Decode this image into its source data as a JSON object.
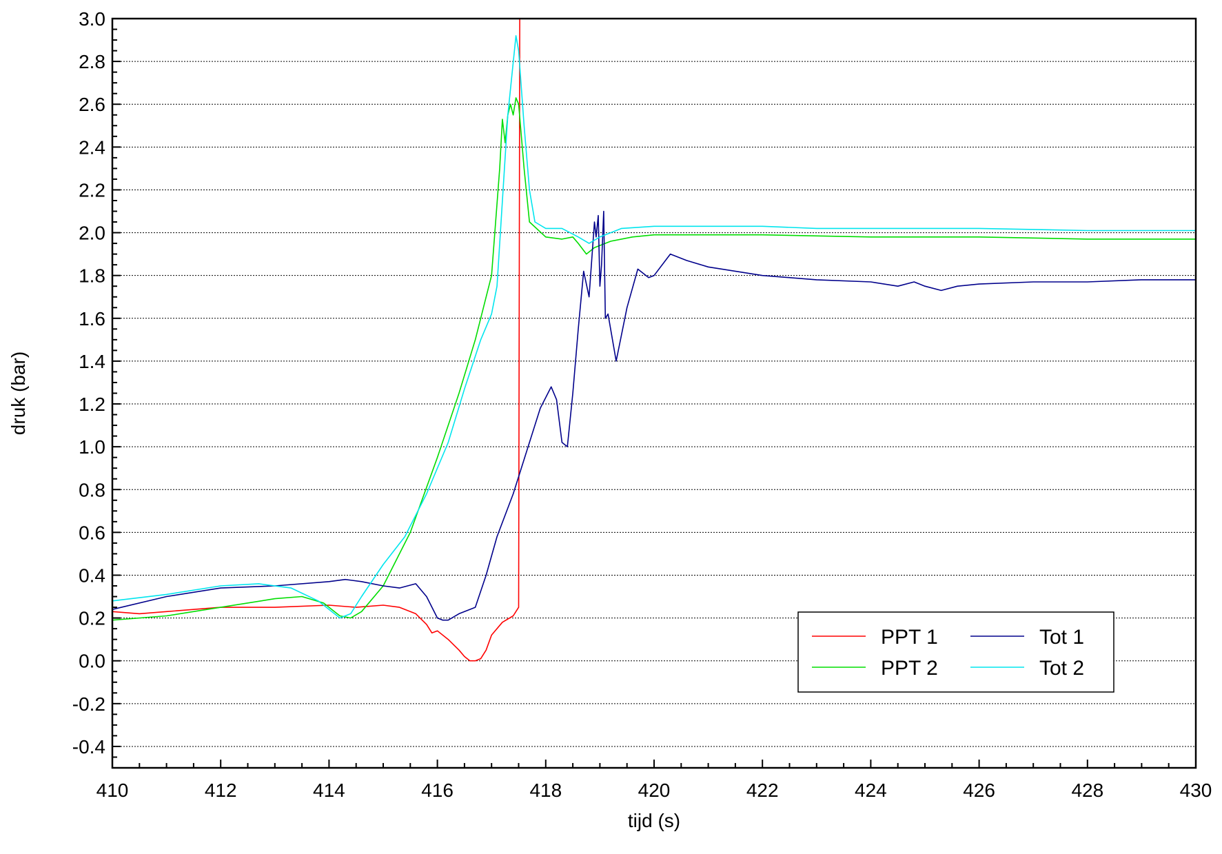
{
  "chart_data": {
    "type": "line",
    "title": "",
    "xlabel": "tijd (s)",
    "ylabel": "druk (bar)",
    "xlim": [
      410,
      430
    ],
    "ylim": [
      -0.5,
      3.0
    ],
    "x_ticks": [
      410,
      412,
      414,
      416,
      418,
      420,
      422,
      424,
      426,
      428,
      430
    ],
    "y_ticks": [
      -0.4,
      -0.2,
      0.0,
      0.2,
      0.4,
      0.6,
      0.8,
      1.0,
      1.2,
      1.4,
      1.6,
      1.8,
      2.0,
      2.2,
      2.4,
      2.6,
      2.8,
      3.0
    ],
    "x_tick_labels": [
      "410",
      "412",
      "414",
      "416",
      "418",
      "420",
      "422",
      "424",
      "426",
      "428",
      "430"
    ],
    "y_tick_labels": [
      "-0.4",
      "-0.2",
      "0.0",
      "0.2",
      "0.4",
      "0.6",
      "0.8",
      "1.0",
      "1.2",
      "1.4",
      "1.6",
      "1.8",
      "2.0",
      "2.2",
      "2.4",
      "2.6",
      "2.8",
      "3.0"
    ],
    "grid": "horizontal dotted",
    "legend_position": "bottom-right",
    "series": [
      {
        "name": "PPT 1",
        "color": "#ff0000",
        "x": [
          410,
          410.5,
          411,
          412,
          413,
          414,
          414.5,
          415,
          415.3,
          415.6,
          415.8,
          415.9,
          416.0,
          416.2,
          416.4,
          416.5,
          416.6,
          416.7,
          416.8,
          416.9,
          417.0,
          417.2,
          417.4,
          417.5,
          417.52,
          417.55
        ],
        "y": [
          0.23,
          0.22,
          0.23,
          0.25,
          0.25,
          0.26,
          0.25,
          0.26,
          0.25,
          0.22,
          0.17,
          0.13,
          0.14,
          0.1,
          0.05,
          0.02,
          0.0,
          0.0,
          0.01,
          0.05,
          0.12,
          0.18,
          0.21,
          0.25,
          3.0,
          3.0
        ]
      },
      {
        "name": "PPT 2",
        "color": "#00dd00",
        "x": [
          410,
          411,
          412,
          413,
          413.5,
          413.9,
          414.2,
          414.4,
          414.6,
          415.0,
          415.5,
          416.0,
          416.4,
          416.7,
          417.0,
          417.15,
          417.2,
          417.25,
          417.3,
          417.35,
          417.4,
          417.45,
          417.5,
          417.6,
          417.7,
          418.0,
          418.3,
          418.5,
          418.6,
          418.75,
          418.9,
          419.2,
          419.6,
          420,
          421,
          422,
          424,
          426,
          428,
          430
        ],
        "y": [
          0.19,
          0.21,
          0.25,
          0.29,
          0.3,
          0.27,
          0.21,
          0.2,
          0.23,
          0.35,
          0.6,
          0.95,
          1.25,
          1.5,
          1.8,
          2.3,
          2.53,
          2.42,
          2.55,
          2.6,
          2.55,
          2.63,
          2.6,
          2.3,
          2.05,
          1.98,
          1.97,
          1.98,
          1.95,
          1.9,
          1.93,
          1.96,
          1.98,
          1.99,
          1.99,
          1.99,
          1.98,
          1.98,
          1.97,
          1.97
        ]
      },
      {
        "name": "Tot 1",
        "color": "#00008b",
        "x": [
          410,
          411,
          412,
          413,
          414,
          414.3,
          414.6,
          415,
          415.3,
          415.6,
          415.8,
          416.0,
          416.1,
          416.2,
          416.4,
          416.7,
          416.9,
          417.1,
          417.4,
          417.7,
          417.9,
          418.1,
          418.2,
          418.3,
          418.4,
          418.5,
          418.6,
          418.7,
          418.8,
          418.9,
          418.93,
          418.97,
          419.0,
          419.03,
          419.07,
          419.1,
          419.15,
          419.3,
          419.5,
          419.7,
          419.9,
          420.0,
          420.3,
          420.6,
          421,
          422,
          423,
          424,
          424.5,
          424.8,
          425,
          425.3,
          425.6,
          426,
          427,
          428,
          429,
          430
        ],
        "y": [
          0.24,
          0.3,
          0.34,
          0.35,
          0.37,
          0.38,
          0.37,
          0.35,
          0.34,
          0.36,
          0.3,
          0.2,
          0.19,
          0.19,
          0.22,
          0.25,
          0.4,
          0.58,
          0.78,
          1.02,
          1.18,
          1.28,
          1.22,
          1.02,
          1.0,
          1.25,
          1.55,
          1.82,
          1.7,
          2.05,
          1.98,
          2.08,
          1.75,
          1.85,
          2.1,
          1.6,
          1.62,
          1.4,
          1.65,
          1.83,
          1.79,
          1.8,
          1.9,
          1.87,
          1.84,
          1.8,
          1.78,
          1.77,
          1.75,
          1.77,
          1.75,
          1.73,
          1.75,
          1.76,
          1.77,
          1.77,
          1.78,
          1.78
        ]
      },
      {
        "name": "Tot 2",
        "color": "#00e5ee",
        "x": [
          410,
          411,
          412,
          412.7,
          413.3,
          413.8,
          414.2,
          414.4,
          414.6,
          415.0,
          415.4,
          415.8,
          416.2,
          416.5,
          416.8,
          417.0,
          417.1,
          417.3,
          417.45,
          417.5,
          417.6,
          417.7,
          417.8,
          418.0,
          418.3,
          418.6,
          418.8,
          419.0,
          419.4,
          420,
          421,
          422,
          423,
          424,
          426,
          428,
          430
        ],
        "y": [
          0.28,
          0.31,
          0.35,
          0.36,
          0.34,
          0.28,
          0.2,
          0.22,
          0.3,
          0.45,
          0.58,
          0.78,
          1.02,
          1.27,
          1.5,
          1.62,
          1.75,
          2.55,
          2.92,
          2.85,
          2.5,
          2.2,
          2.05,
          2.02,
          2.02,
          1.98,
          1.95,
          1.98,
          2.02,
          2.03,
          2.03,
          2.03,
          2.02,
          2.02,
          2.02,
          2.01,
          2.01
        ]
      }
    ]
  }
}
